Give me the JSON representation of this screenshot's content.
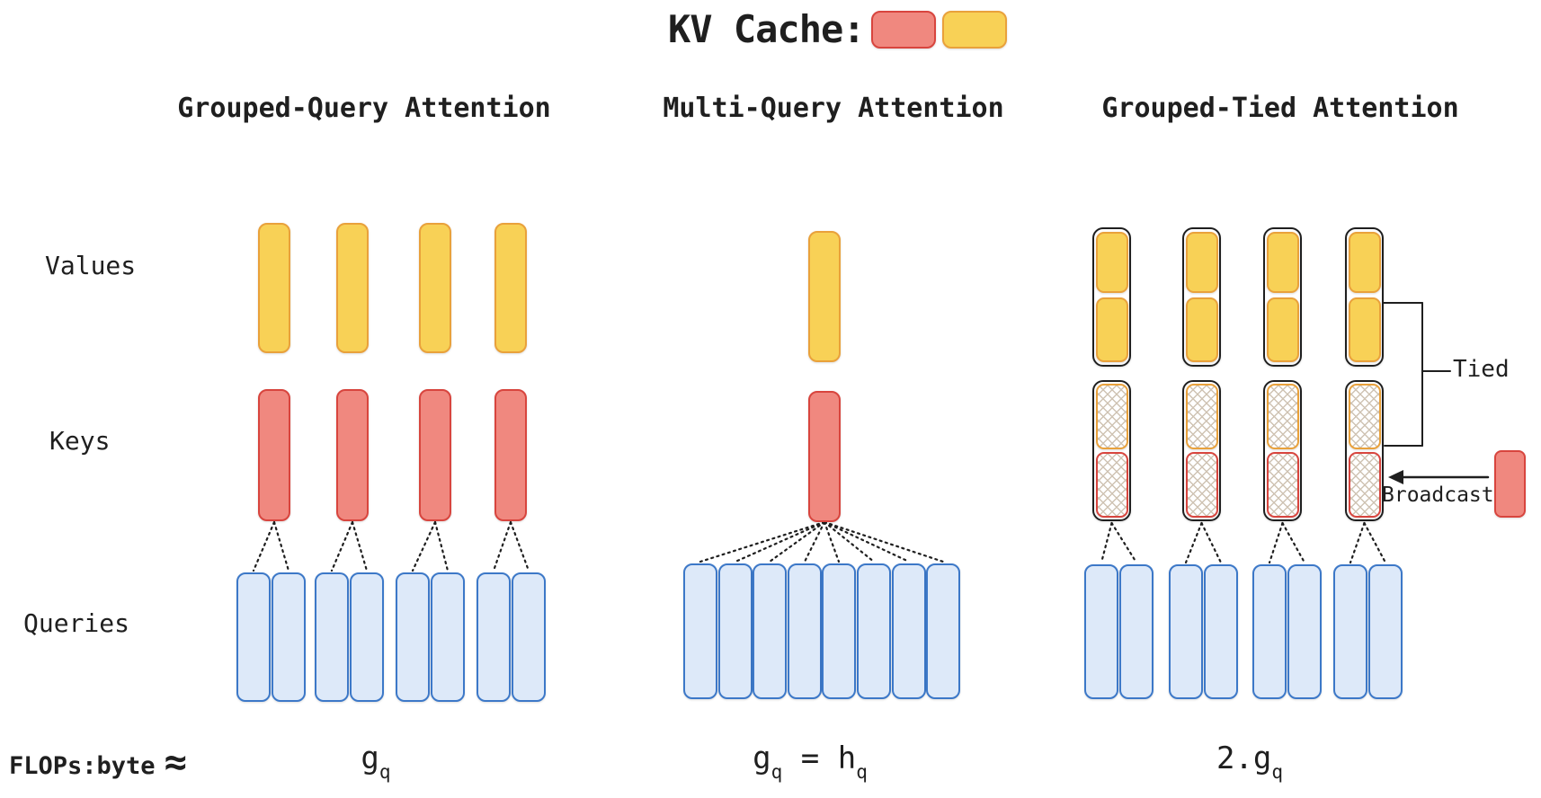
{
  "header": {
    "label": "KV Cache:",
    "swatches": [
      {
        "name": "key-cache-swatch",
        "fill": "#F0887F",
        "border": "#D8453E"
      },
      {
        "name": "value-cache-swatch",
        "fill": "#F8D156",
        "border": "#E9A13B"
      }
    ]
  },
  "row_labels": {
    "values": "Values",
    "keys": "Keys",
    "queries": "Queries"
  },
  "flops_row": {
    "label": "FLOPs:byte",
    "approx": "≈"
  },
  "annotations": {
    "tied": "Tied",
    "broadcast": "Broadcast"
  },
  "colors": {
    "value_fill": "#F8D156",
    "value_border": "#E9A13B",
    "key_fill": "#F0887F",
    "key_border": "#D8453E",
    "query_fill": "#DDE9F9",
    "query_border": "#3C78C8",
    "outline": "#1F1F1F",
    "line": "#1F1F1F",
    "hatch_line": "#CFC3B3",
    "background": "#FFFFFF"
  },
  "columns": [
    {
      "id": "grouped-query-attention",
      "title": "Grouped-Query Attention",
      "value_bars": 4,
      "values_stacked_per_group": 1,
      "key_bars": 4,
      "key_style": "solid",
      "query_groups": 4,
      "queries_per_group": 2,
      "flops": [
        {
          "t": "g"
        },
        {
          "t": "q",
          "sub": true
        }
      ]
    },
    {
      "id": "multi-query-attention",
      "title": "Multi-Query Attention",
      "value_bars": 1,
      "values_stacked_per_group": 1,
      "key_bars": 1,
      "key_style": "solid",
      "query_groups": 1,
      "queries_per_group": 8,
      "flops": [
        {
          "t": "g"
        },
        {
          "t": "q",
          "sub": true
        },
        {
          "t": " = "
        },
        {
          "t": "h"
        },
        {
          "t": "q",
          "sub": true
        }
      ]
    },
    {
      "id": "grouped-tied-attention",
      "title": "Grouped-Tied Attention",
      "value_bars": 4,
      "values_stacked_per_group": 2,
      "key_bars": 4,
      "key_style": "tied-hatched",
      "keys_tied_to_values": true,
      "keys_broadcast": true,
      "query_groups": 4,
      "queries_per_group": 2,
      "flops": [
        {
          "t": "2.g"
        },
        {
          "t": "q",
          "sub": true
        }
      ]
    }
  ]
}
